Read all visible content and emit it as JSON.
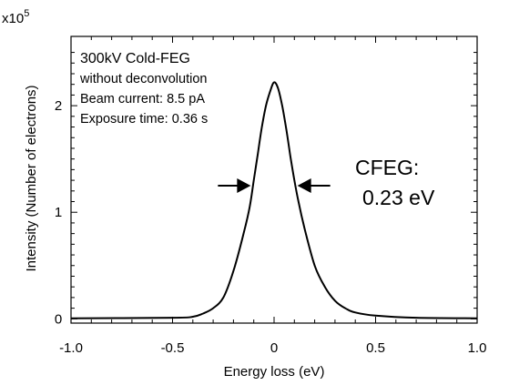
{
  "chart_data": {
    "type": "line",
    "xlabel": "Energy loss (eV)",
    "ylabel": "Intensity (Number of electrons)",
    "y_multiplier_base": "x10",
    "y_multiplier_exp": "5",
    "xlim": [
      -1.0,
      1.0
    ],
    "ylim": [
      -0.04,
      2.65
    ],
    "x_ticks": [
      {
        "value": -1.0,
        "label": "-1.0"
      },
      {
        "value": -0.5,
        "label": "-0.5"
      },
      {
        "value": 0,
        "label": "0"
      },
      {
        "value": 0.5,
        "label": "0.5"
      },
      {
        "value": 1.0,
        "label": "1.0"
      }
    ],
    "y_ticks": [
      {
        "value": 0,
        "label": "0"
      },
      {
        "value": 1,
        "label": "1"
      },
      {
        "value": 2,
        "label": "2"
      }
    ],
    "series": [
      {
        "x": [
          -1.0,
          -0.5,
          -0.4,
          -0.35,
          -0.3,
          -0.25,
          -0.2,
          -0.15,
          -0.12,
          -0.1,
          -0.08,
          -0.06,
          -0.04,
          -0.02,
          0,
          0.02,
          0.04,
          0.06,
          0.08,
          0.1,
          0.12,
          0.15,
          0.2,
          0.25,
          0.3,
          0.35,
          0.4,
          0.5,
          0.7,
          1.0
        ],
        "y": [
          0.005,
          0.01,
          0.02,
          0.05,
          0.1,
          0.2,
          0.45,
          0.8,
          1.05,
          1.3,
          1.55,
          1.8,
          2.0,
          2.13,
          2.22,
          2.16,
          2.0,
          1.78,
          1.53,
          1.3,
          1.1,
          0.85,
          0.5,
          0.3,
          0.17,
          0.1,
          0.06,
          0.03,
          0.01,
          0.005
        ]
      }
    ],
    "annotations": {
      "info_title": "300kV Cold-FEG",
      "info_lines": [
        "without deconvolution",
        "Beam current: 8.5 pA",
        "Exposure time: 0.36 s"
      ],
      "fwhm_label": "CFEG:",
      "fwhm_value": "0.23 eV",
      "fwhm_arrows_x": [
        -0.115,
        0.115
      ],
      "fwhm_arrows_y": 1.25
    }
  }
}
